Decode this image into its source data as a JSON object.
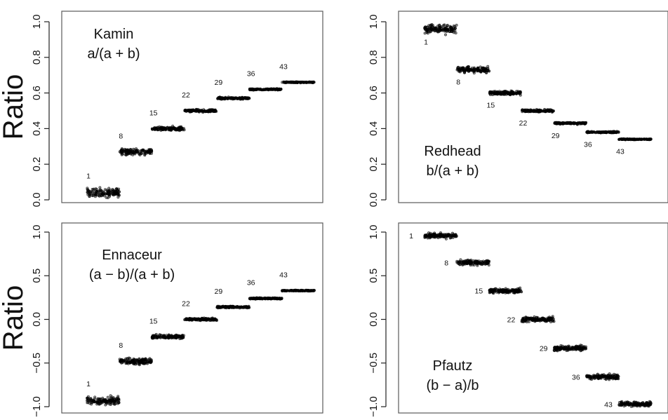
{
  "chart_data": [
    {
      "type": "scatter",
      "panel": "top-left",
      "title_lines": [
        "Kamin",
        "a/(a + b)"
      ],
      "ylabel": "Ratio",
      "xlabel": "",
      "ylim": [
        0.0,
        1.0
      ],
      "y_ticks": [
        "0.0",
        "0.2",
        "0.4",
        "0.6",
        "0.8",
        "1.0"
      ],
      "grid": false,
      "series": [
        {
          "labels": [
            "1",
            "8",
            "15",
            "22",
            "29",
            "36",
            "43"
          ],
          "y": [
            0.04,
            0.27,
            0.4,
            0.5,
            0.57,
            0.62,
            0.66
          ],
          "spread": [
            0.018,
            0.012,
            0.008,
            0.005,
            0.004,
            0.003,
            0.002
          ]
        }
      ]
    },
    {
      "type": "scatter",
      "panel": "top-right",
      "title_lines": [
        "Redhead",
        "b/(a + b)"
      ],
      "ylabel": "",
      "xlabel": "",
      "ylim": [
        0.0,
        1.0
      ],
      "y_ticks": [
        "0.0",
        "0.2",
        "0.4",
        "0.6",
        "0.8",
        "1.0"
      ],
      "grid": false,
      "series": [
        {
          "labels": [
            "1",
            "8",
            "15",
            "22",
            "29",
            "36",
            "43"
          ],
          "y": [
            0.96,
            0.73,
            0.6,
            0.5,
            0.43,
            0.38,
            0.34
          ],
          "spread": [
            0.018,
            0.012,
            0.008,
            0.005,
            0.004,
            0.003,
            0.002
          ]
        }
      ]
    },
    {
      "type": "scatter",
      "panel": "bottom-left",
      "title_lines": [
        "Ennaceur",
        "(a − b)/(a + b)"
      ],
      "ylabel": "Ratio",
      "xlabel": "",
      "ylim": [
        -1.0,
        1.0
      ],
      "y_ticks": [
        "−1.0",
        "−0.5",
        "0.0",
        "0.5",
        "1.0"
      ],
      "grid": false,
      "series": [
        {
          "labels": [
            "1",
            "8",
            "15",
            "22",
            "29",
            "36",
            "43"
          ],
          "y": [
            -0.93,
            -0.48,
            -0.2,
            0.0,
            0.14,
            0.24,
            0.33
          ],
          "spread": [
            0.035,
            0.025,
            0.016,
            0.01,
            0.008,
            0.006,
            0.004
          ]
        }
      ]
    },
    {
      "type": "scatter",
      "panel": "bottom-right",
      "title_lines": [
        "Pfautz",
        "(b − a)/b"
      ],
      "ylabel": "",
      "xlabel": "",
      "ylim": [
        -1.0,
        1.0
      ],
      "y_ticks": [
        "−1.0",
        "−0.5",
        "0.0",
        "0.5",
        "1.0"
      ],
      "grid": false,
      "series": [
        {
          "labels": [
            "1",
            "8",
            "15",
            "22",
            "29",
            "36",
            "43"
          ],
          "y": [
            0.96,
            0.65,
            0.33,
            0.0,
            -0.33,
            -0.66,
            -0.97
          ],
          "spread": [
            0.02,
            0.02,
            0.02,
            0.02,
            0.02,
            0.02,
            0.02
          ]
        }
      ]
    }
  ]
}
